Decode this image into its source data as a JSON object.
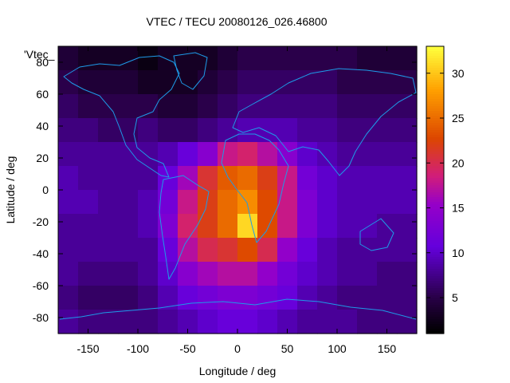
{
  "chart_data": {
    "type": "heatmap",
    "title": "VTEC / TECU 20080126_026.46800",
    "xlabel": "Longitude / deg",
    "ylabel": "Latitude / deg",
    "legend_key": "'Vtec_",
    "xlim": [
      -180,
      180
    ],
    "ylim": [
      -90,
      90
    ],
    "xticks": [
      -150,
      -100,
      -50,
      0,
      50,
      100,
      150
    ],
    "yticks": [
      -80,
      -60,
      -40,
      -20,
      0,
      20,
      40,
      60,
      80
    ],
    "colorbar": {
      "min": 1,
      "max": 33,
      "ticks": [
        5,
        10,
        15,
        20,
        25,
        30
      ]
    },
    "z_values": [
      [
        4,
        3,
        3,
        3,
        2,
        3,
        3,
        3,
        4,
        5,
        5,
        5,
        5,
        5,
        5,
        4,
        4,
        4
      ],
      [
        5,
        4,
        4,
        4,
        3,
        3,
        3,
        4,
        5,
        6,
        6,
        6,
        6,
        6,
        5,
        5,
        5,
        5
      ],
      [
        6,
        5,
        5,
        5,
        5,
        4,
        4,
        5,
        6,
        7,
        7,
        7,
        7,
        7,
        6,
        6,
        6,
        6
      ],
      [
        7,
        7,
        6,
        6,
        7,
        6,
        6,
        7,
        8,
        9,
        9,
        9,
        8,
        8,
        7,
        7,
        7,
        7
      ],
      [
        8,
        8,
        8,
        8,
        8,
        9,
        11,
        14,
        18,
        19,
        17,
        14,
        10,
        9,
        8,
        8,
        8,
        8
      ],
      [
        9,
        8,
        8,
        8,
        8,
        11,
        16,
        21,
        24,
        25,
        22,
        18,
        12,
        10,
        9,
        9,
        9,
        9
      ],
      [
        9,
        9,
        8,
        8,
        9,
        12,
        18,
        22,
        25,
        27,
        23,
        18,
        13,
        10,
        9,
        9,
        9,
        9
      ],
      [
        8,
        8,
        8,
        8,
        9,
        13,
        19,
        22,
        25,
        31,
        23,
        18,
        13,
        10,
        9,
        9,
        8,
        8
      ],
      [
        8,
        8,
        8,
        8,
        8,
        11,
        17,
        20,
        21,
        23,
        20,
        15,
        11,
        9,
        8,
        8,
        8,
        8
      ],
      [
        8,
        7,
        7,
        7,
        8,
        10,
        14,
        16,
        17,
        17,
        15,
        12,
        10,
        9,
        8,
        8,
        7,
        7
      ],
      [
        7,
        6,
        6,
        6,
        7,
        9,
        11,
        12,
        13,
        13,
        12,
        11,
        9,
        8,
        7,
        7,
        7,
        7
      ],
      [
        8,
        7,
        7,
        7,
        7,
        8,
        9,
        10,
        11,
        11,
        10,
        9,
        8,
        8,
        8,
        7,
        7,
        7
      ]
    ]
  }
}
